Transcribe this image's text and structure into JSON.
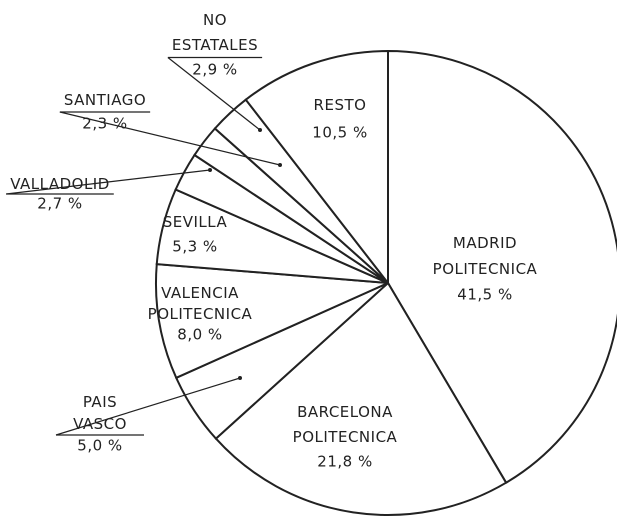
{
  "chart_data": {
    "type": "pie",
    "categories": [
      "MADRID POLITECNICA",
      "BARCELONA POLITECNICA",
      "PAIS VASCO",
      "VALENCIA POLITECNICA",
      "SEVILLA",
      "VALLADOLID",
      "SANTIAGO",
      "NO ESTATALES",
      "RESTO"
    ],
    "values": [
      41.5,
      21.8,
      5.0,
      8.0,
      5.3,
      2.7,
      2.3,
      2.9,
      10.5
    ],
    "value_labels": [
      "41,5 %",
      "21,8 %",
      "5,0 %",
      "8,0 %",
      "5,3 %",
      "2,7 %",
      "2,3 %",
      "2,9 %",
      "10,5 %"
    ],
    "color": "#ffffff"
  }
}
